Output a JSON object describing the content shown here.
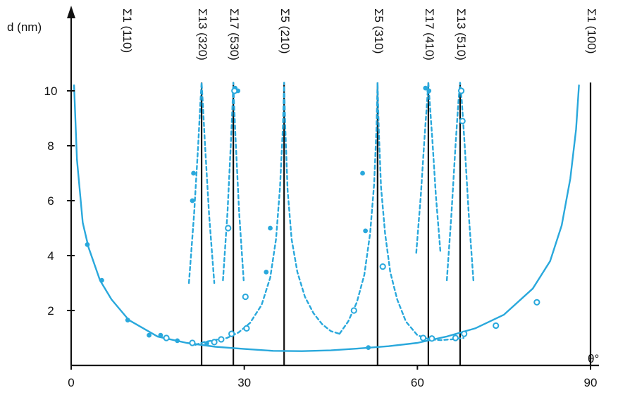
{
  "chart_data": {
    "type": "line",
    "title": "",
    "xlabel": "θ°",
    "ylabel": "d (nm)",
    "xlim": [
      0,
      90
    ],
    "ylim": [
      0,
      11
    ],
    "x_ticks": [
      0,
      30,
      60,
      90
    ],
    "y_ticks": [
      2,
      4,
      6,
      8,
      10
    ],
    "colors": {
      "curve": "#29a8dc",
      "axis": "#111111",
      "marker": "#29a8dc"
    },
    "boundaries": [
      {
        "angle": 0,
        "label": "Σ1 (110)"
      },
      {
        "angle": 22.6,
        "label": "Σ13 (320)"
      },
      {
        "angle": 28.1,
        "label": "Σ17 (530)"
      },
      {
        "angle": 36.9,
        "label": "Σ5 (210)"
      },
      {
        "angle": 53.1,
        "label": "Σ5 (310)"
      },
      {
        "angle": 61.9,
        "label": "Σ17 (410)"
      },
      {
        "angle": 67.4,
        "label": "Σ13 (510)"
      },
      {
        "angle": 90,
        "label": "Σ1 (100)"
      }
    ],
    "series": [
      {
        "style": "solid",
        "x": [
          0.5,
          1,
          2,
          3,
          5,
          7,
          10,
          15,
          20,
          25,
          30,
          35,
          40,
          45,
          50,
          55,
          60,
          65,
          70,
          75,
          80,
          83,
          85,
          86.5,
          87.5,
          88
        ],
        "y": [
          10.2,
          7.5,
          5.2,
          4.3,
          3.1,
          2.4,
          1.65,
          1.05,
          0.82,
          0.68,
          0.6,
          0.53,
          0.52,
          0.55,
          0.62,
          0.7,
          0.82,
          1.05,
          1.35,
          1.85,
          2.8,
          3.8,
          5.1,
          6.8,
          8.6,
          10.2
        ]
      },
      {
        "style": "dashed",
        "x": [
          20.4,
          21.3,
          22.0,
          22.4,
          22.6,
          22.8,
          23.2,
          23.9,
          24.8
        ],
        "y": [
          3.0,
          5.5,
          8.0,
          9.6,
          10.3,
          9.6,
          8.0,
          5.5,
          3.0
        ]
      },
      {
        "style": "dashed",
        "x": [
          26.3,
          27.1,
          27.7,
          28.0,
          28.1,
          28.2,
          28.5,
          29.1,
          29.9
        ],
        "y": [
          3.1,
          5.6,
          8.2,
          9.7,
          10.3,
          9.7,
          8.2,
          5.6,
          3.1
        ]
      },
      {
        "style": "dashed",
        "x": [
          21.5,
          23.0,
          25.0,
          27.0,
          29.0,
          31.0,
          33.0,
          34.5,
          35.5,
          36.2,
          36.7,
          36.9,
          37.1,
          37.5,
          38.2,
          39.2,
          40.5,
          42.0,
          43.5,
          45.0,
          46.5
        ],
        "y": [
          0.75,
          0.85,
          0.93,
          1.0,
          1.2,
          1.55,
          2.2,
          3.2,
          4.6,
          6.5,
          8.7,
          10.3,
          8.7,
          6.4,
          4.6,
          3.4,
          2.5,
          1.9,
          1.5,
          1.25,
          1.15
        ]
      },
      {
        "style": "dashed",
        "x": [
          46.5,
          48.0,
          49.5,
          50.8,
          51.8,
          52.5,
          52.9,
          53.1,
          53.3,
          53.7,
          54.4,
          55.3,
          56.5,
          58.0,
          60.0,
          62.0,
          64.0,
          66.0,
          68.0
        ],
        "y": [
          1.15,
          1.6,
          2.3,
          3.3,
          4.8,
          6.6,
          8.6,
          10.3,
          8.6,
          6.5,
          4.8,
          3.4,
          2.4,
          1.6,
          1.1,
          0.95,
          0.92,
          0.95,
          1.0
        ]
      },
      {
        "style": "dashed",
        "x": [
          59.8,
          60.6,
          61.2,
          61.7,
          61.9,
          62.1,
          62.6,
          63.2,
          64.0
        ],
        "y": [
          4.1,
          6.2,
          8.2,
          9.7,
          10.3,
          9.7,
          8.2,
          6.2,
          4.1
        ]
      },
      {
        "style": "dashed",
        "x": [
          65.1,
          65.9,
          66.6,
          67.1,
          67.4,
          67.7,
          68.2,
          68.9,
          69.7
        ],
        "y": [
          3.1,
          5.5,
          8.0,
          9.6,
          10.3,
          9.6,
          8.0,
          5.5,
          3.1
        ]
      }
    ],
    "points": {
      "filled": [
        [
          2.8,
          4.4
        ],
        [
          5.3,
          3.1
        ],
        [
          9.8,
          1.65
        ],
        [
          13.5,
          1.1
        ],
        [
          15.5,
          1.1
        ],
        [
          18.4,
          0.9
        ],
        [
          21.0,
          6.0
        ],
        [
          21.2,
          7.0
        ],
        [
          23.5,
          0.8
        ],
        [
          28.4,
          10.1
        ],
        [
          28.9,
          10.0
        ],
        [
          34.5,
          5.0
        ],
        [
          33.8,
          3.4
        ],
        [
          51.0,
          4.9
        ],
        [
          50.5,
          7.0
        ],
        [
          51.5,
          0.65
        ],
        [
          61.4,
          10.1
        ],
        [
          62.0,
          10.0
        ]
      ],
      "open": [
        [
          16.5,
          1.0
        ],
        [
          21.0,
          0.82
        ],
        [
          24.8,
          0.85
        ],
        [
          26.0,
          0.95
        ],
        [
          27.8,
          1.15
        ],
        [
          28.3,
          10.0
        ],
        [
          27.2,
          5.0
        ],
        [
          30.4,
          1.35
        ],
        [
          30.2,
          2.5
        ],
        [
          49.0,
          2.0
        ],
        [
          54.0,
          3.6
        ],
        [
          61.0,
          1.0
        ],
        [
          66.6,
          1.0
        ],
        [
          67.6,
          10.0
        ],
        [
          67.8,
          8.9
        ],
        [
          68.1,
          1.15
        ],
        [
          73.6,
          1.45
        ],
        [
          80.7,
          2.3
        ],
        [
          62.5,
          0.98
        ]
      ]
    }
  }
}
